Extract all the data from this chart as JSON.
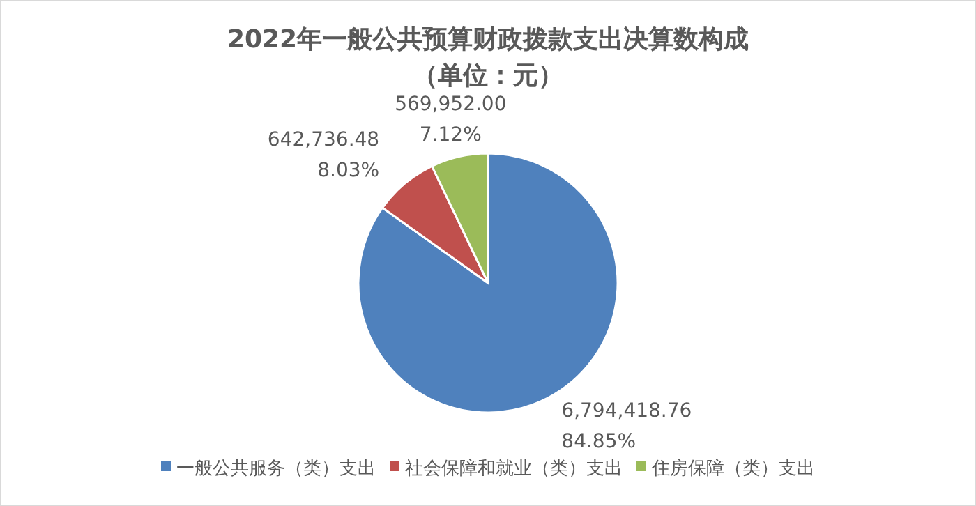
{
  "chart_data": {
    "type": "pie",
    "title": "2022年一般公共预算财政拨款支出决算数构成",
    "subtitle": "（单位：元）",
    "categories": [
      "一般公共服务（类）支出",
      "社会保障和就业（类）支出",
      "住房保障（类）支出"
    ],
    "values": [
      6794418.76,
      642736.48,
      569952.0
    ],
    "colors": [
      "#4f81bd",
      "#c0504d",
      "#9bbb59"
    ],
    "value_labels": [
      "6,794,418.76\n84.85%",
      "642,736.48\n8.03%",
      "569,952.00\n7.12%"
    ],
    "legend": "bottom"
  }
}
